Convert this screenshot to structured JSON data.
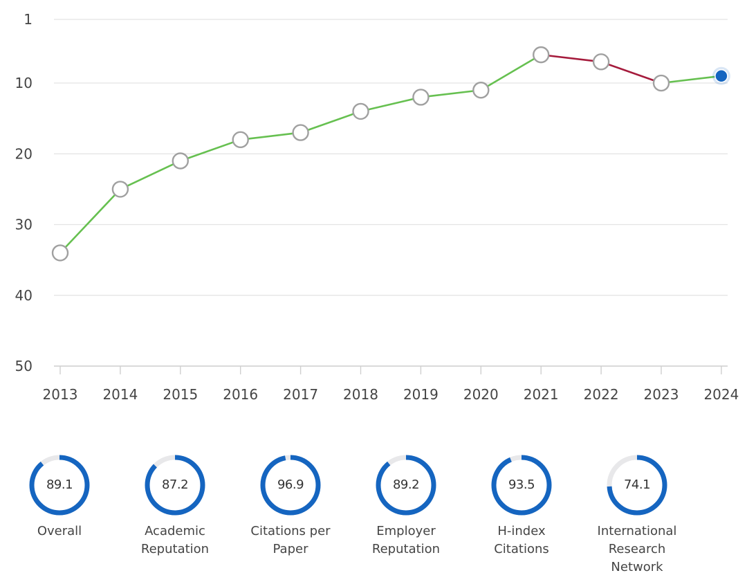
{
  "chart_data": {
    "type": "line",
    "x": [
      "2013",
      "2014",
      "2015",
      "2016",
      "2017",
      "2018",
      "2019",
      "2020",
      "2021",
      "2022",
      "2023",
      "2024"
    ],
    "series": [
      {
        "values": [
          34,
          25,
          21,
          18,
          17,
          14,
          12,
          11,
          6,
          7,
          10,
          9
        ]
      }
    ],
    "y_ticks": [
      "1",
      "10",
      "20",
      "30",
      "40",
      "50"
    ],
    "ylim": [
      1,
      50
    ],
    "y_inverted": true,
    "grid": true,
    "colors": {
      "improve": "#66c050",
      "decline": "#a51b3c",
      "marker_fill": "#ffffff",
      "marker_stroke": "#a0a0a0",
      "current_marker": "#1565c0",
      "grid": "#e3e3e3"
    }
  },
  "scores": [
    {
      "label": "Overall",
      "value": "89.1",
      "pct": 89.1
    },
    {
      "label": "Academic\nReputation",
      "value": "87.2",
      "pct": 87.2
    },
    {
      "label": "Citations per\nPaper",
      "value": "96.9",
      "pct": 96.9
    },
    {
      "label": "Employer\nReputation",
      "value": "89.2",
      "pct": 89.2
    },
    {
      "label": "H-index\nCitations",
      "value": "93.5",
      "pct": 93.5
    },
    {
      "label": "International\nResearch\nNetwork",
      "value": "74.1",
      "pct": 74.1
    }
  ],
  "ring_colors": {
    "fill": "#1565c0",
    "track": "#e8e8ea"
  }
}
